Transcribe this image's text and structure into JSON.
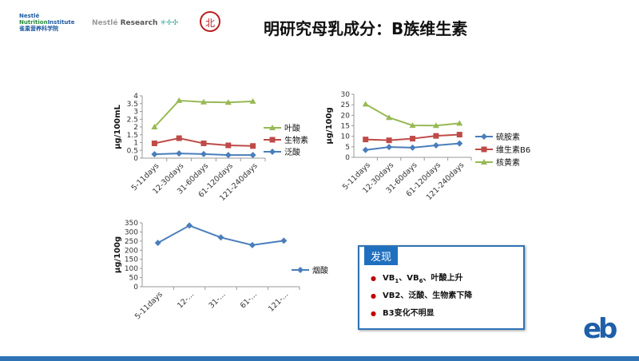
{
  "header": {
    "title": "明研究母乳成分：B族维生素",
    "logos": [
      "Nestlé NutritionInstitute 雀巢营养科学院",
      "Nestlé Research",
      "Peking University seal"
    ]
  },
  "findings": {
    "title": "发现",
    "items": [
      {
        "pre": "VB",
        "s1": "1",
        "mid": "、VB",
        "s2": "6",
        "post": "、叶酸上升"
      },
      {
        "text": "VB2、泛酸、生物素下降"
      },
      {
        "text": "B3变化不明显"
      }
    ]
  },
  "colors": {
    "blue": "#4a7ebb",
    "red": "#be4b48",
    "green": "#98b954",
    "accent": "#2e74b5"
  },
  "chart_data": [
    {
      "type": "line",
      "ylabel": "μg/100mL",
      "ylim": [
        0,
        4
      ],
      "yticks": [
        0,
        0.5,
        1,
        1.5,
        2,
        2.5,
        3,
        3.5,
        4
      ],
      "categories": [
        "5-11days",
        "12-30days",
        "31-60days",
        "61-120days",
        "121-240days"
      ],
      "series": [
        {
          "name": "叶酸",
          "color": "#98b954",
          "marker": "triangle",
          "values": [
            2.0,
            3.7,
            3.6,
            3.58,
            3.65
          ]
        },
        {
          "name": "生物素",
          "color": "#be4b48",
          "marker": "square",
          "values": [
            0.95,
            1.28,
            0.95,
            0.82,
            0.78
          ]
        },
        {
          "name": "泛酸",
          "color": "#4a7ebb",
          "marker": "diamond",
          "values": [
            0.25,
            0.3,
            0.26,
            0.2,
            0.2
          ]
        }
      ]
    },
    {
      "type": "line",
      "ylabel": "μg/100g",
      "ylim": [
        0,
        30
      ],
      "yticks": [
        0,
        5,
        10,
        15,
        20,
        25,
        30
      ],
      "categories": [
        "5-11days",
        "12-30days",
        "31-60days",
        "61-120days",
        "121-240days"
      ],
      "series": [
        {
          "name": "硫胺素",
          "color": "#4a7ebb",
          "marker": "diamond",
          "values": [
            3.5,
            4.9,
            4.6,
            5.7,
            6.6
          ]
        },
        {
          "name": "维生素B6",
          "color": "#be4b48",
          "marker": "square",
          "values": [
            8.5,
            8.1,
            8.9,
            10.2,
            10.8
          ]
        },
        {
          "name": "核黄素",
          "color": "#98b954",
          "marker": "triangle",
          "values": [
            25.3,
            18.9,
            15.2,
            15.1,
            16.2
          ]
        }
      ]
    },
    {
      "type": "line",
      "ylabel": "μg/100g",
      "ylim": [
        0,
        350
      ],
      "yticks": [
        0,
        50,
        100,
        150,
        200,
        250,
        300,
        350
      ],
      "categories": [
        "5-11days",
        "12-...",
        "31-...",
        "61-...",
        "121-..."
      ],
      "series": [
        {
          "name": "烟酸",
          "color": "#4a7ebb",
          "marker": "diamond",
          "values": [
            240,
            335,
            270,
            228,
            252
          ]
        }
      ]
    }
  ]
}
